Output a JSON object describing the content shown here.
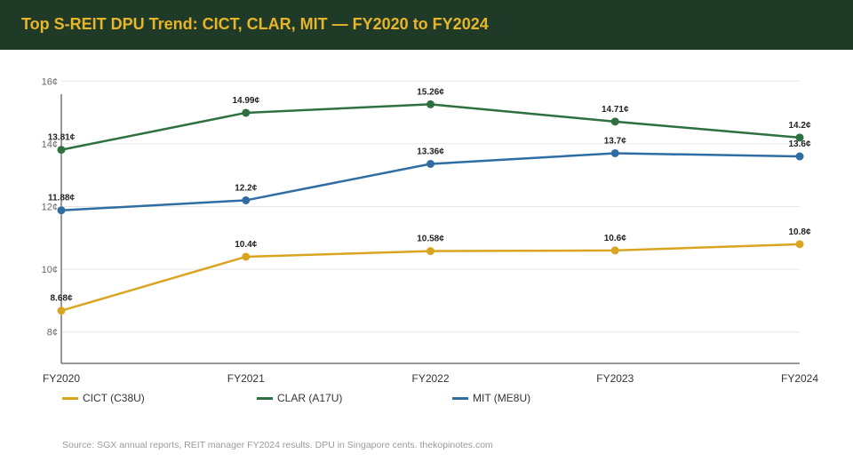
{
  "title": "Top S-REIT DPU Trend: CICT, CLAR, MIT — FY2020 to FY2024",
  "source": "Source: SGX annual reports, REIT manager FY2024 results. DPU in Singapore cents. thekopinotes.com",
  "colors": {
    "header_bg": "#1f3b28",
    "title": "#e8b52a",
    "grid": "#e6e6e6",
    "axis": "#333333"
  },
  "chart_data": {
    "type": "line",
    "title": "Top S-REIT DPU Trend: CICT, CLAR, MIT — FY2020 to FY2024",
    "x": [
      "FY2020",
      "FY2021",
      "FY2022",
      "FY2023",
      "FY2024"
    ],
    "ylim": [
      7,
      17
    ],
    "yticks": [
      8,
      10,
      12,
      14,
      16
    ],
    "ytick_labels": [
      "8¢",
      "10¢",
      "12¢",
      "14¢",
      "16¢"
    ],
    "grid": true,
    "legend": "bottom",
    "series": [
      {
        "name": "CICT (C38U)",
        "color": "#d9a521",
        "values": [
          8.68,
          10.4,
          10.58,
          10.6,
          10.8
        ],
        "labels": [
          "8.68¢",
          "10.4¢",
          "10.58¢",
          "10.6¢",
          "10.8¢"
        ]
      },
      {
        "name": "CLAR (A17U)",
        "color": "#2e7040",
        "values": [
          13.81,
          14.99,
          15.26,
          14.71,
          14.2
        ],
        "labels": [
          "13.81¢",
          "14.99¢",
          "15.26¢",
          "14.71¢",
          "14.2¢"
        ]
      },
      {
        "name": "MIT (ME8U)",
        "color": "#2f6da3",
        "values": [
          11.88,
          12.2,
          13.36,
          13.7,
          13.6
        ],
        "labels": [
          "11.88¢",
          "12.2¢",
          "13.36¢",
          "13.7¢",
          "13.6¢"
        ]
      }
    ]
  }
}
